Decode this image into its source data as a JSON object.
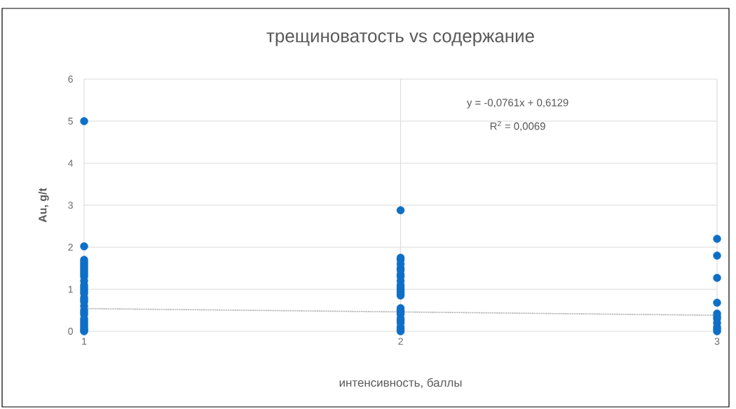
{
  "chart_data": {
    "type": "scatter",
    "title": "трещиноватость vs содержание",
    "xlabel": "интенсивность, баллы",
    "ylabel": "Au, g/t",
    "annotations": [
      "y = -0,0761x + 0,6129",
      "R$^{2}$ = 0,0069"
    ],
    "xlim": [
      1,
      3
    ],
    "xticks": [
      1,
      2,
      3
    ],
    "ylim": [
      0,
      6
    ],
    "yticks": [
      0,
      1,
      2,
      3,
      4,
      5,
      6
    ],
    "grid": true,
    "marker": "circle",
    "series": [
      {
        "color": "#0f6fc6",
        "x": [
          1,
          1,
          1,
          1,
          1,
          1,
          1,
          1,
          1,
          1,
          1,
          1,
          1,
          1,
          1,
          1,
          1,
          1,
          1,
          1,
          1,
          1,
          1,
          1,
          1,
          1,
          1,
          1,
          1,
          1,
          1,
          1,
          2,
          2,
          2,
          2,
          2,
          2,
          2,
          2,
          2,
          2,
          2,
          2,
          2,
          2,
          2,
          2,
          2,
          2,
          2,
          2,
          2,
          2,
          2,
          2,
          2,
          3,
          3,
          3,
          3,
          3,
          3,
          3,
          3,
          3,
          3,
          3
        ],
        "values": [
          5.0,
          2.02,
          1.7,
          1.65,
          1.6,
          1.55,
          1.5,
          1.45,
          1.4,
          1.35,
          1.3,
          1.2,
          1.1,
          1.05,
          1.0,
          0.95,
          0.9,
          0.8,
          0.75,
          0.7,
          0.6,
          0.5,
          0.45,
          0.4,
          0.3,
          0.25,
          0.2,
          0.15,
          0.1,
          0.05,
          0.02,
          0,
          2.88,
          1.75,
          1.7,
          1.6,
          1.5,
          1.45,
          1.35,
          1.3,
          1.2,
          1.1,
          1.05,
          1.0,
          0.95,
          0.9,
          0.85,
          0.55,
          0.5,
          0.45,
          0.4,
          0.3,
          0.25,
          0.2,
          0.1,
          0.05,
          0,
          2.2,
          1.8,
          1.27,
          0.68,
          0.42,
          0.35,
          0.3,
          0.2,
          0.1,
          0.05,
          0
        ]
      },
      {
        "type": "line",
        "color": "#a6a6a6",
        "line_style": "dotted",
        "marker": "none",
        "x": [
          1,
          3
        ],
        "values": [
          0.54,
          0.38
        ]
      }
    ]
  }
}
